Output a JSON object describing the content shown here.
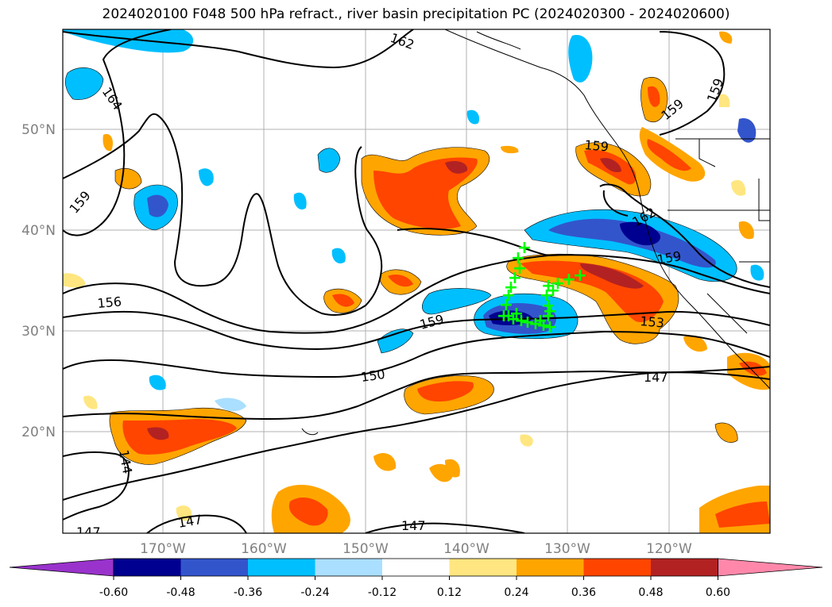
{
  "title": "2024020100 F048 500 hPa refract., river basin precipitation PC (2024020300 - 2024020600)",
  "axes": {
    "lon_labels": [
      "170°W",
      "160°W",
      "150°W",
      "140°W",
      "130°W",
      "120°W"
    ],
    "lat_labels": [
      "50°N",
      "40°N",
      "30°N",
      "20°N"
    ],
    "label_color": "#808080"
  },
  "contour_labels": [
    "162",
    "164",
    "159",
    "159",
    "159",
    "159",
    "162",
    "159",
    "156",
    "159",
    "153",
    "150",
    "147",
    "144",
    "147",
    "147",
    "147"
  ],
  "colorbar": {
    "ticks": [
      "-0.60",
      "-0.48",
      "-0.36",
      "-0.24",
      "-0.12",
      "0.12",
      "0.24",
      "0.36",
      "0.48",
      "0.60"
    ],
    "colors": [
      "#9933cc",
      "#000090",
      "#3355cc",
      "#00bfff",
      "#aadfff",
      "#ffffff",
      "#ffe680",
      "#ffa500",
      "#ff4500",
      "#b22222",
      "#ff88aa"
    ]
  },
  "markers": {
    "symbol": "+",
    "color": "#00ff00",
    "count": 26
  }
}
